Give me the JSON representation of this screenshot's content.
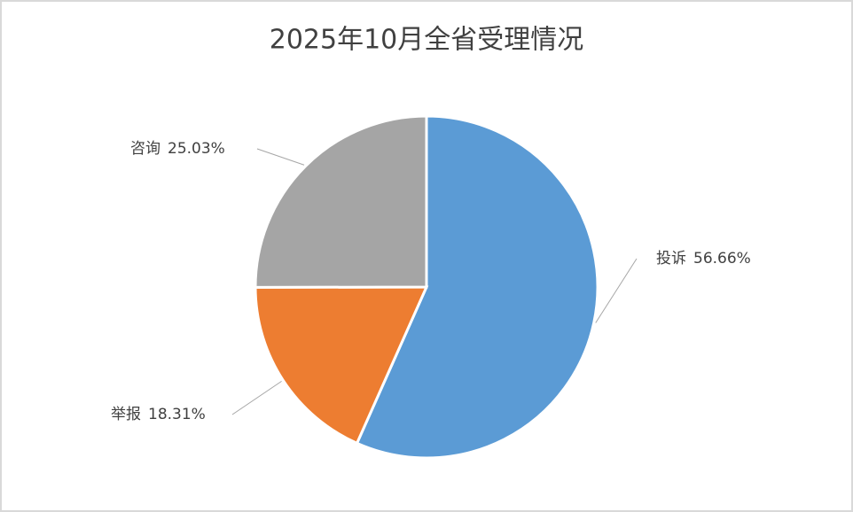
{
  "chart_data": {
    "type": "pie",
    "title": "2025年10月全省受理情况",
    "categories": [
      "投诉",
      "举报",
      "咨询"
    ],
    "values": [
      56.66,
      18.31,
      25.03
    ],
    "value_labels": [
      "56.66%",
      "18.31%",
      "25.03%"
    ],
    "colors": [
      "#5b9bd5",
      "#ed7d31",
      "#a5a5a5"
    ]
  }
}
